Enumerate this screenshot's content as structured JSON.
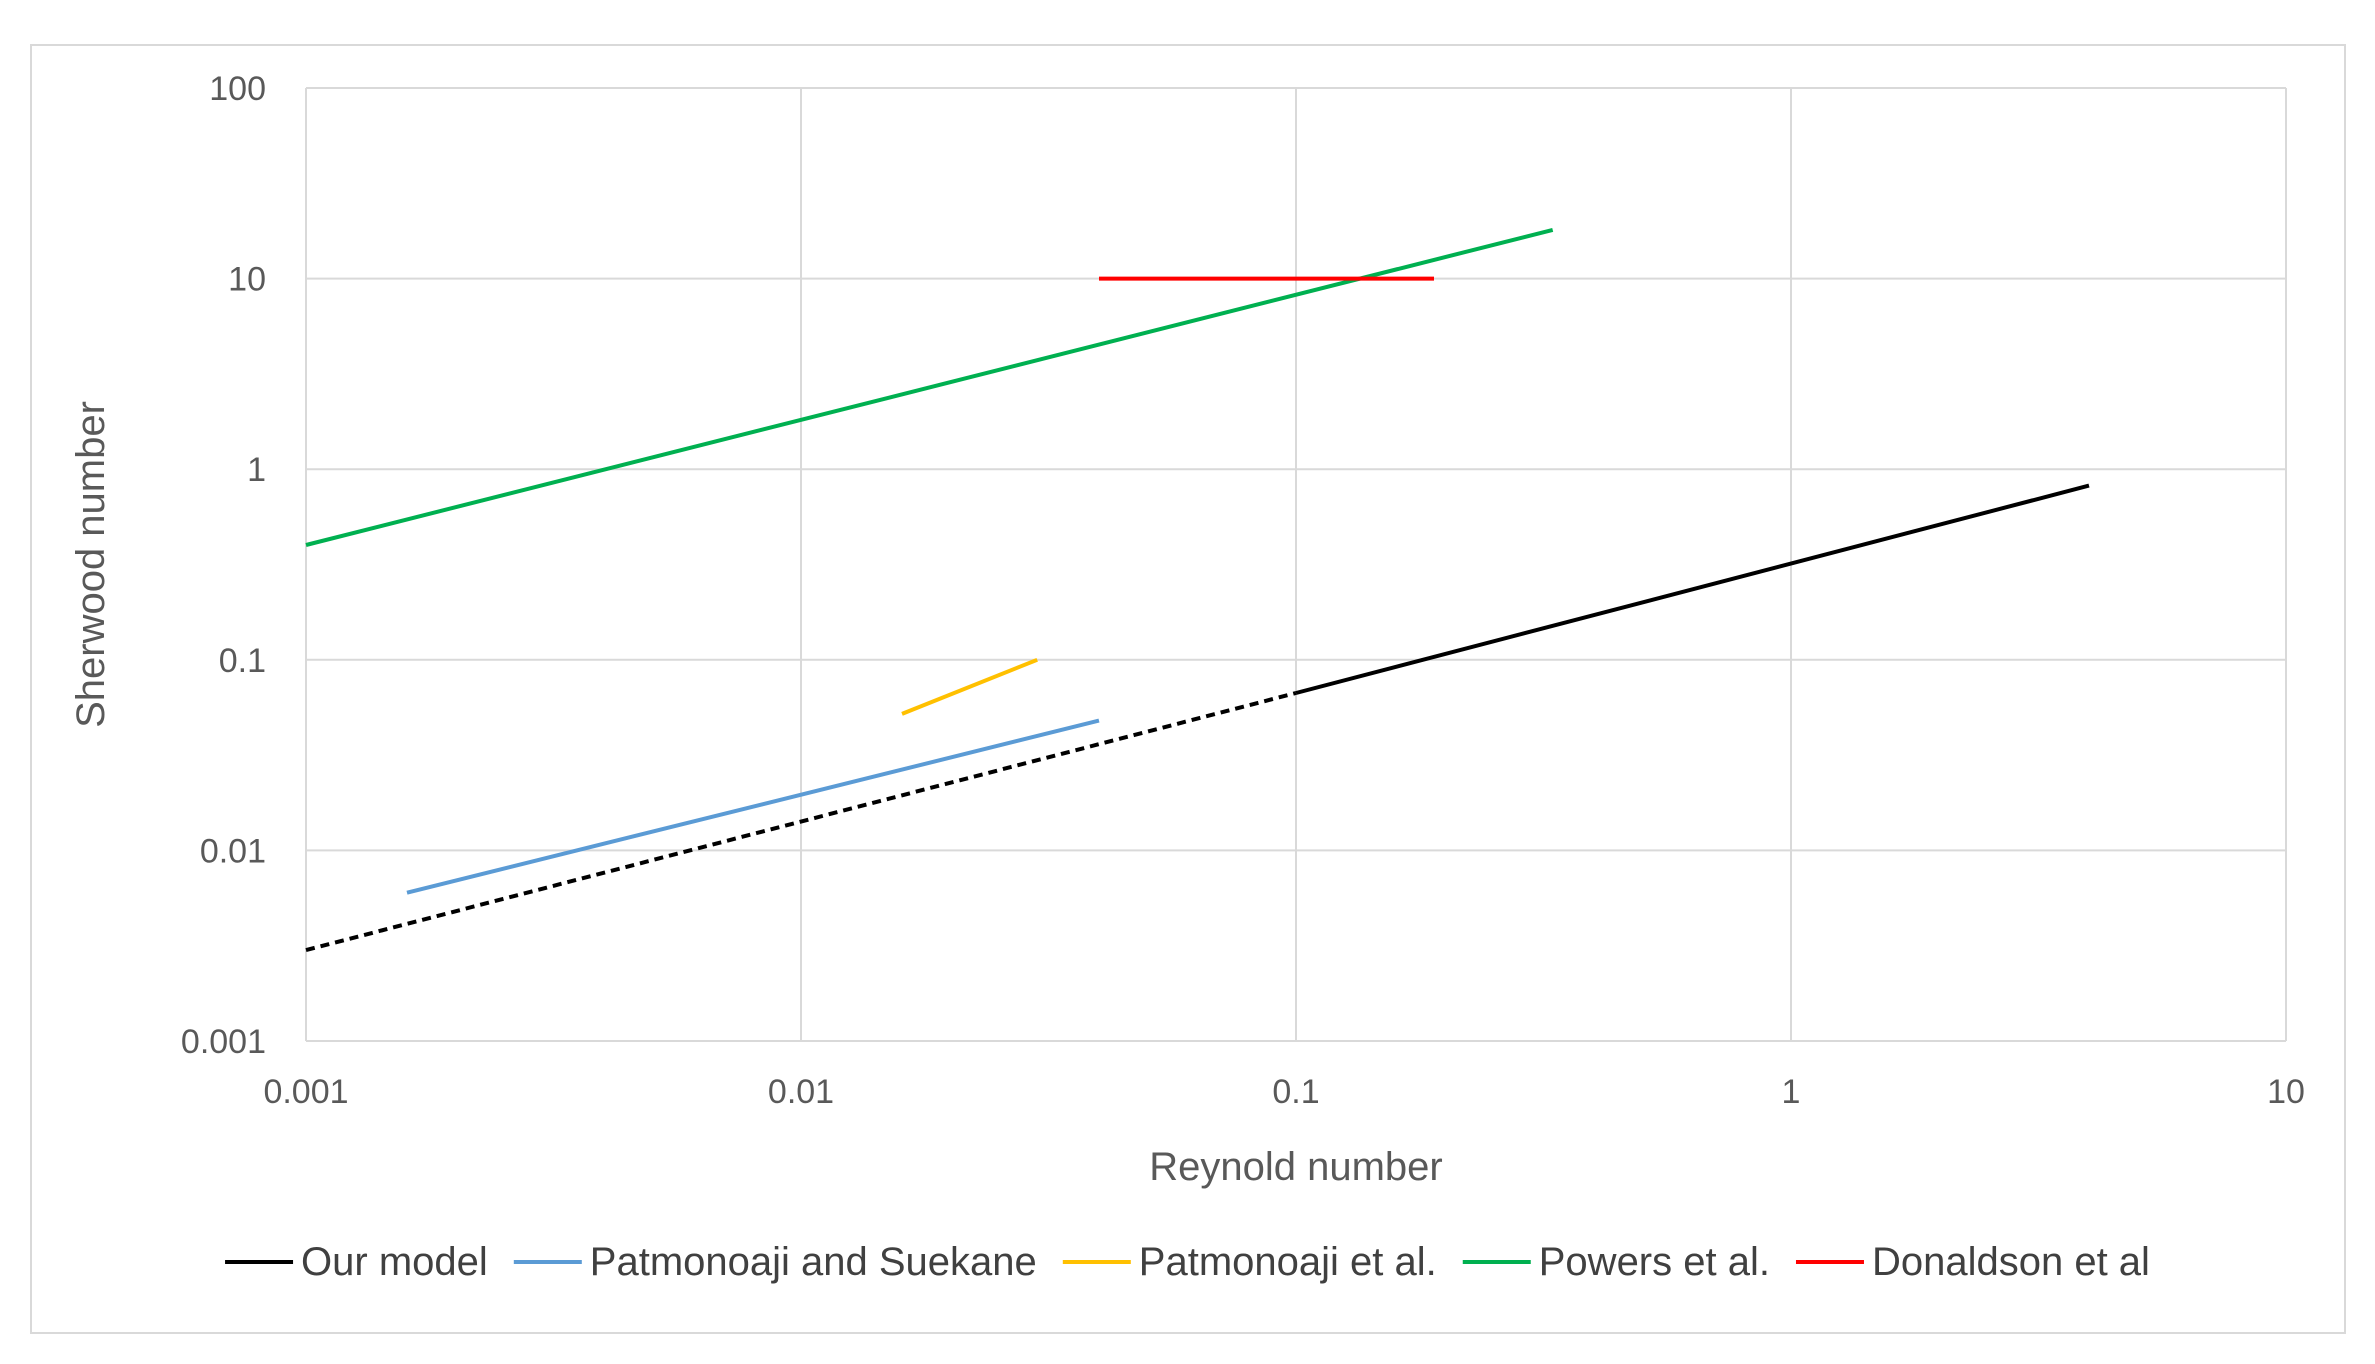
{
  "chart_data": {
    "type": "line",
    "title": "",
    "xlabel": "Reynold number",
    "ylabel": "Sherwood number",
    "x_scale": "log",
    "y_scale": "log",
    "xlim": [
      0.001,
      10
    ],
    "ylim": [
      0.001,
      100
    ],
    "x_ticks": [
      "0.001",
      "0.01",
      "0.1",
      "1",
      "10"
    ],
    "y_ticks": [
      "0.001",
      "0.01",
      "0.1",
      "1",
      "10",
      "100"
    ],
    "grid": true,
    "legend_position": "bottom",
    "series": [
      {
        "name": "Our model",
        "color": "#000000",
        "style": "solid",
        "points": [
          [
            0.1,
            0.067
          ],
          [
            4.0,
            0.82
          ]
        ]
      },
      {
        "name": "Our model (extrapolated)",
        "color": "#000000",
        "style": "dashed",
        "legend": false,
        "points": [
          [
            0.001,
            0.003
          ],
          [
            0.1,
            0.067
          ]
        ]
      },
      {
        "name": "Patmonoaji and Suekane",
        "color": "#5b9bd5",
        "style": "solid",
        "points": [
          [
            0.0016,
            0.006
          ],
          [
            0.04,
            0.048
          ]
        ]
      },
      {
        "name": "Patmonoaji et al.",
        "color": "#ffc000",
        "style": "solid",
        "points": [
          [
            0.016,
            0.052
          ],
          [
            0.03,
            0.1
          ]
        ]
      },
      {
        "name": "Powers et al.",
        "color": "#00b050",
        "style": "solid",
        "points": [
          [
            0.001,
            0.4
          ],
          [
            0.33,
            18
          ]
        ]
      },
      {
        "name": "Donaldson et al",
        "color": "#ff0000",
        "style": "solid",
        "points": [
          [
            0.04,
            10
          ],
          [
            0.19,
            10
          ]
        ]
      }
    ]
  }
}
